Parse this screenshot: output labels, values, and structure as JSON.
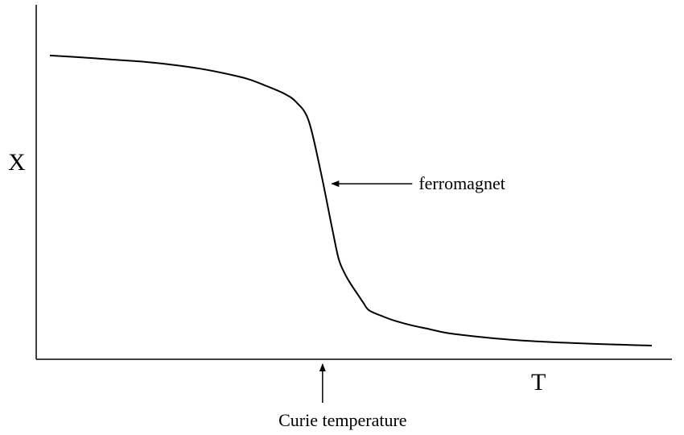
{
  "chart_data": {
    "type": "line",
    "title": "",
    "xlabel": "T",
    "ylabel": "X",
    "grid": false,
    "legend": "none",
    "series": [
      {
        "name": "",
        "color": "#000000",
        "x": [
          0.0,
          0.05,
          0.1,
          0.15,
          0.2,
          0.25,
          0.3,
          0.33,
          0.36,
          0.39,
          0.41,
          0.43,
          0.45,
          0.47,
          0.48,
          0.49,
          0.5,
          0.51,
          0.52,
          0.53,
          0.55,
          0.57,
          0.6,
          0.63,
          0.66,
          0.7,
          0.75,
          0.8,
          0.85,
          0.9,
          0.95,
          1.0
        ],
        "y": [
          0.968,
          0.962,
          0.955,
          0.948,
          0.938,
          0.924,
          0.904,
          0.889,
          0.866,
          0.84,
          0.811,
          0.75,
          0.58,
          0.38,
          0.288,
          0.24,
          0.205,
          0.175,
          0.145,
          0.118,
          0.1,
          0.085,
          0.068,
          0.055,
          0.042,
          0.032,
          0.022,
          0.015,
          0.01,
          0.006,
          0.003,
          0.0
        ]
      }
    ],
    "annotations": [
      {
        "name": "ferromagnet-label",
        "text": "ferromagnet",
        "x": 0.455,
        "y": 0.54
      },
      {
        "name": "curie-label",
        "text": "Curie temperature",
        "x": 0.453
      }
    ]
  }
}
